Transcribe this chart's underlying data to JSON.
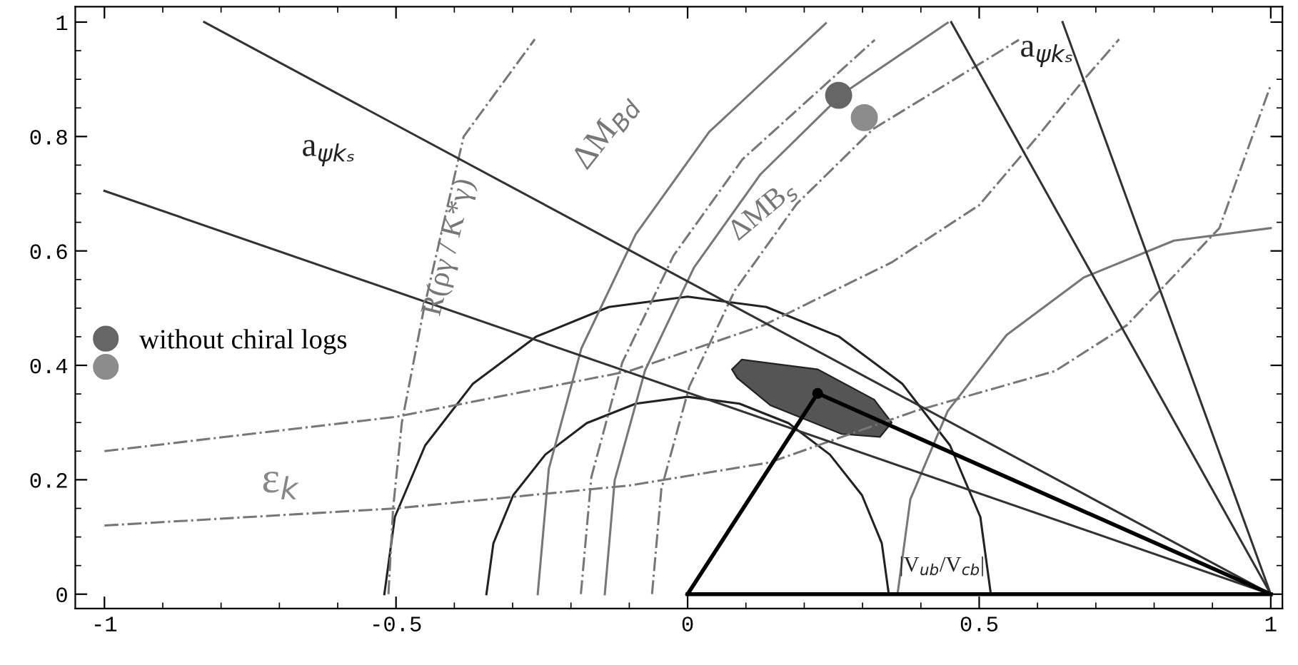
{
  "chart_data": {
    "type": "line",
    "xlim": [
      -1.05,
      1.02
    ],
    "ylim": [
      -0.025,
      1.027
    ],
    "xticks": [
      {
        "value": -1,
        "label": "-1"
      },
      {
        "value": -0.5,
        "label": "-0.5"
      },
      0,
      0.5,
      1
    ],
    "yticks": [
      0,
      0.2,
      0.4,
      0.6,
      0.8,
      1
    ],
    "grid": false,
    "legend": "left",
    "series": [
      {
        "type": "line",
        "color": "#222222",
        "line_style": "solid",
        "x": [
          0.52,
          0.502,
          0.45,
          0.368,
          0.26,
          0.135,
          0,
          -0.135,
          -0.26,
          -0.368,
          -0.45,
          -0.502,
          -0.52
        ],
        "values": [
          0,
          0.135,
          0.26,
          0.368,
          0.45,
          0.502,
          0.52,
          0.502,
          0.45,
          0.368,
          0.26,
          0.135,
          0
        ]
      },
      {
        "type": "line",
        "color": "#222222",
        "line_style": "solid",
        "x": [
          0.345,
          0.333,
          0.299,
          0.244,
          0.173,
          0.089,
          0,
          -0.089,
          -0.173,
          -0.244,
          -0.299,
          -0.333,
          -0.345
        ],
        "values": [
          0,
          0.089,
          0.173,
          0.244,
          0.299,
          0.333,
          0.345,
          0.333,
          0.299,
          0.244,
          0.173,
          0.089,
          0
        ]
      },
      {
        "type": "line",
        "color": "#777777",
        "line_style": "solid",
        "x": [
          -0.257,
          -0.238,
          -0.182,
          -0.089,
          0.037,
          0.237
        ],
        "values": [
          0,
          0.219,
          0.43,
          0.629,
          0.808,
          0.998
        ]
      },
      {
        "type": "line",
        "color": "#777777",
        "line_style": "solid",
        "x": [
          -0.142,
          -0.125,
          -0.073,
          0.011,
          0.125,
          0.266,
          0.446
        ],
        "values": [
          0,
          0.199,
          0.391,
          0.571,
          0.734,
          0.875,
          0.999
        ]
      },
      {
        "type": "line",
        "color": "#777777",
        "line_style": "dashdot",
        "x": [
          -0.183,
          -0.165,
          -0.112,
          -0.024,
          0.094,
          0.321
        ],
        "values": [
          0,
          0.205,
          0.405,
          0.592,
          0.76,
          0.969
        ]
      },
      {
        "type": "line",
        "color": "#777777",
        "line_style": "dashdot",
        "x": [
          -0.061,
          -0.045,
          0.003,
          0.081,
          0.187,
          0.318,
          0.568
        ],
        "values": [
          0,
          0.184,
          0.363,
          0.531,
          0.682,
          0.813,
          0.969
        ]
      },
      {
        "type": "line",
        "color": "#777777",
        "line_style": "solid",
        "x": [
          0.36,
          0.382,
          0.446,
          0.547,
          0.68,
          0.834,
          1.0
        ],
        "values": [
          0,
          0.166,
          0.32,
          0.453,
          0.554,
          0.618,
          0.64
        ]
      },
      {
        "type": "line",
        "color": "#777777",
        "line_style": "dashdot",
        "x": [
          -0.513,
          -0.505,
          -0.49,
          -0.452,
          -0.384,
          -0.262
        ],
        "values": [
          0,
          0.15,
          0.3,
          0.5,
          0.8,
          0.97
        ]
      },
      {
        "type": "line",
        "color": "#777777",
        "line_style": "dashdot",
        "x": [
          -1,
          -0.5,
          -0.1,
          0.13,
          0.35,
          0.5,
          0.6,
          0.68,
          0.74
        ],
        "values": [
          0.25,
          0.31,
          0.39,
          0.47,
          0.58,
          0.68,
          0.8,
          0.9,
          0.97
        ]
      },
      {
        "type": "line",
        "color": "#777777",
        "line_style": "dashdot",
        "x": [
          -1,
          -0.5,
          -0.1,
          0.14,
          0.39,
          0.63,
          0.753,
          0.912,
          1.0
        ],
        "values": [
          0.12,
          0.15,
          0.19,
          0.23,
          0.32,
          0.39,
          0.47,
          0.64,
          0.89
        ]
      },
      {
        "type": "line",
        "color": "#333333",
        "line_style": "solid",
        "x": [
          -0.829,
          1
        ],
        "values": [
          1.0,
          0
        ]
      },
      {
        "type": "line",
        "color": "#333333",
        "line_style": "solid",
        "x": [
          -1.0,
          1
        ],
        "values": [
          0.705,
          0
        ]
      },
      {
        "type": "line",
        "color": "#333333",
        "line_style": "solid",
        "x": [
          0.452,
          1
        ],
        "values": [
          1.0,
          0
        ]
      },
      {
        "type": "line",
        "color": "#333333",
        "line_style": "solid",
        "x": [
          0.643,
          1
        ],
        "values": [
          1.0,
          0
        ]
      },
      {
        "type": "area",
        "color": "#555555",
        "x": [
          0.076,
          0.093,
          0.223,
          0.32,
          0.35,
          0.33,
          0.264,
          0.142,
          0.085
        ],
        "values": [
          0.393,
          0.41,
          0.393,
          0.34,
          0.3,
          0.275,
          0.28,
          0.33,
          0.378
        ]
      },
      {
        "color": "#000000",
        "line_style": "solid",
        "x": [
          0,
          1
        ],
        "values": [
          0,
          0
        ]
      },
      {
        "color": "#000000",
        "line_style": "solid",
        "x": [
          0,
          0.223,
          1
        ],
        "values": [
          0,
          0.351,
          0
        ]
      },
      {
        "type": "scatter",
        "color": "#000000",
        "marker": "circle",
        "x": [
          0.223
        ],
        "values": [
          0.351
        ]
      },
      {
        "type": "scatter",
        "color": "#666666",
        "marker": "circle",
        "name": "without chiral logs",
        "x": [
          0.259
        ],
        "values": [
          0.872
        ]
      },
      {
        "type": "scatter",
        "color": "#8c8c8c",
        "marker": "circle",
        "x": [
          0.303
        ],
        "values": [
          0.833
        ]
      }
    ],
    "annotations": [
      "a$_{ψkₛ}$",
      "a$_{ψkₛ}$",
      "R(ργ / K*γ)",
      "ΔM$_{Bd}$",
      "ΔMB$_{s}$",
      "ε$_{k}$",
      "|V$_{ub}$/V$_{cb}$|"
    ]
  }
}
